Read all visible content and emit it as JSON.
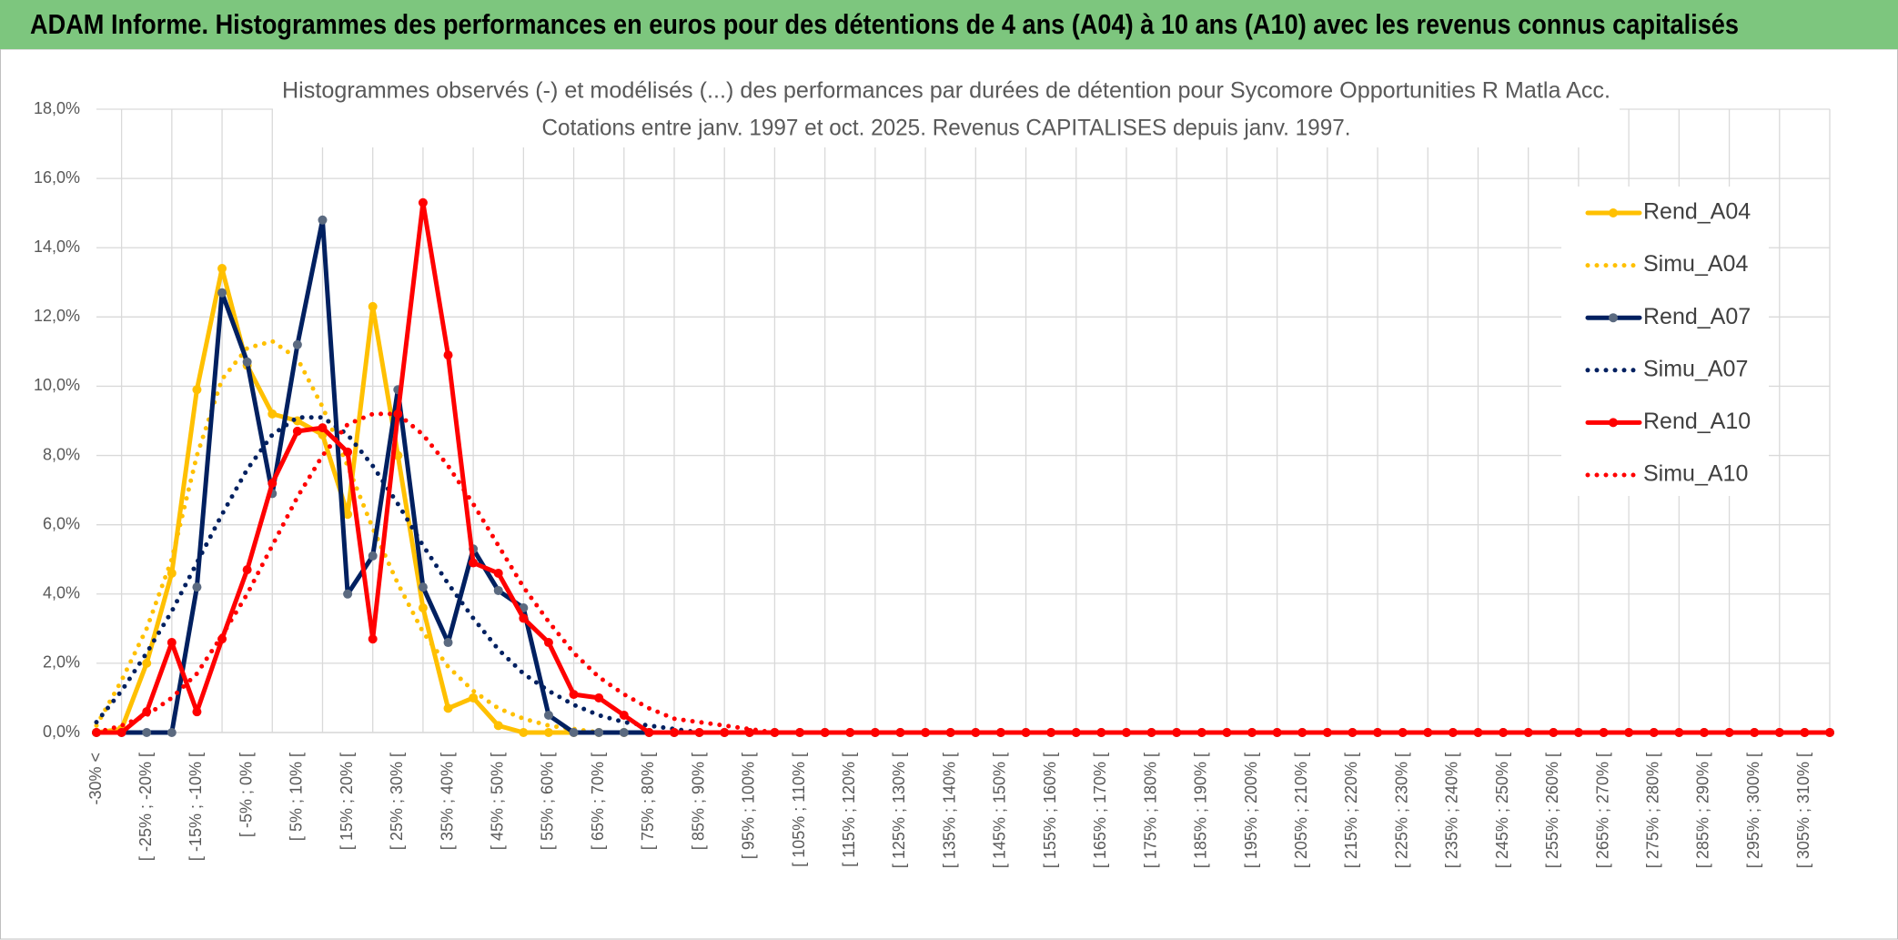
{
  "header": "ADAM Informe. Histogrammes des performances en euros pour des détentions de 4 ans (A04) à 10 ans (A10) avec les revenus connus capitalisés",
  "chart_data": {
    "type": "line",
    "title": "Histogrammes observés (-) et modélisés (...) des performances par durées de détention pour Sycomore Opportunities R Matla Acc.",
    "subtitle": "Cotations entre janv. 1997 et oct. 2025. Revenus CAPITALISES depuis janv. 1997.",
    "categories": [
      "-30% <",
      null,
      "[ -25% ; -20% [",
      null,
      "[ -15% ; -10% [",
      null,
      "[ -5% ; 0% [",
      null,
      "[ 5% ; 10% [",
      null,
      "[ 15% ; 20% [",
      null,
      "[ 25% ; 30% [",
      null,
      "[ 35% ; 40% [",
      null,
      "[ 45% ; 50% [",
      null,
      "[ 55% ; 60% [",
      null,
      "[ 65% ; 70% [",
      null,
      "[ 75% ; 80% [",
      null,
      "[ 85% ; 90% [",
      null,
      "[ 95% ; 100% [",
      null,
      "[ 105% ; 110% [",
      null,
      "[ 115% ; 120% [",
      null,
      "[ 125% ; 130% [",
      null,
      "[ 135% ; 140% [",
      null,
      "[ 145% ; 150% [",
      null,
      "[ 155% ; 160% [",
      null,
      "[ 165% ; 170% [",
      null,
      "[ 175% ; 180% [",
      null,
      "[ 185% ; 190% [",
      null,
      "[ 195% ; 200% [",
      null,
      "[ 205% ; 210% [",
      null,
      "[ 215% ; 220% [",
      null,
      "[ 225% ; 230% [",
      null,
      "[ 235% ; 240% [",
      null,
      "[ 245% ; 250% [",
      null,
      "[ 255% ; 260% [",
      null,
      "[ 265% ; 270% [",
      null,
      "[ 275% ; 280% [",
      null,
      "[ 285% ; 290% [",
      null,
      "[ 295% ; 300% [",
      null,
      "[ 305% ; 310% [",
      null
    ],
    "series": [
      {
        "name": "Rend_A04",
        "color": "#FFC000",
        "style": "solid",
        "markers": true,
        "values": [
          0,
          0.1,
          2.0,
          4.6,
          9.9,
          13.4,
          10.6,
          9.2,
          9.0,
          8.6,
          6.3,
          12.3,
          8.0,
          3.6,
          0.7,
          1.0,
          0.2,
          0,
          0,
          0,
          0,
          0,
          0,
          0,
          0,
          0,
          0,
          0,
          0,
          0,
          0,
          0,
          0,
          0,
          0,
          0,
          0,
          0,
          0,
          0,
          0,
          0,
          0,
          0,
          0,
          0,
          0,
          0,
          0,
          0,
          0,
          0,
          0,
          0,
          0,
          0,
          0,
          0,
          0,
          0,
          0,
          0,
          0,
          0,
          0,
          0,
          0,
          0,
          0,
          0
        ]
      },
      {
        "name": "Simu_A04",
        "color": "#FFC000",
        "style": "dotted",
        "markers": false,
        "values": [
          0.2,
          1.5,
          3.0,
          5.0,
          8.0,
          10.2,
          11.1,
          11.3,
          10.8,
          9.4,
          7.7,
          5.9,
          4.3,
          2.9,
          1.9,
          1.2,
          0.7,
          0.4,
          0.2,
          0.1,
          0,
          0,
          0,
          0,
          0,
          0,
          0,
          0,
          0,
          0,
          0,
          0,
          0,
          0,
          0,
          0,
          0,
          0,
          0,
          0,
          0,
          0,
          0,
          0,
          0,
          0,
          0,
          0,
          0,
          0,
          0,
          0,
          0,
          0,
          0,
          0,
          0,
          0,
          0,
          0,
          0,
          0,
          0,
          0,
          0,
          0,
          0,
          0,
          0,
          0
        ]
      },
      {
        "name": "Rend_A07",
        "color": "#002060",
        "marker_color": "#5B6A80",
        "style": "solid",
        "markers": true,
        "values": [
          0,
          0,
          0,
          0,
          4.2,
          12.7,
          10.7,
          6.9,
          11.2,
          14.8,
          4.0,
          5.1,
          9.9,
          4.2,
          2.6,
          5.3,
          4.1,
          3.6,
          0.5,
          0,
          0,
          0,
          0,
          0,
          0,
          0,
          0,
          0,
          0,
          0,
          0,
          0,
          0,
          0,
          0,
          0,
          0,
          0,
          0,
          0,
          0,
          0,
          0,
          0,
          0,
          0,
          0,
          0,
          0,
          0,
          0,
          0,
          0,
          0,
          0,
          0,
          0,
          0,
          0,
          0,
          0,
          0,
          0,
          0,
          0,
          0,
          0,
          0,
          0,
          0
        ]
      },
      {
        "name": "Simu_A07",
        "color": "#002060",
        "style": "dotted",
        "markers": false,
        "values": [
          0.3,
          1.2,
          2.3,
          3.5,
          4.9,
          6.3,
          7.6,
          8.6,
          9.1,
          9.1,
          8.6,
          7.7,
          6.6,
          5.4,
          4.3,
          3.3,
          2.4,
          1.7,
          1.2,
          0.8,
          0.5,
          0.3,
          0.2,
          0.1,
          0,
          0,
          0,
          0,
          0,
          0,
          0,
          0,
          0,
          0,
          0,
          0,
          0,
          0,
          0,
          0,
          0,
          0,
          0,
          0,
          0,
          0,
          0,
          0,
          0,
          0,
          0,
          0,
          0,
          0,
          0,
          0,
          0,
          0,
          0,
          0,
          0,
          0,
          0,
          0,
          0,
          0,
          0,
          0,
          0,
          0
        ]
      },
      {
        "name": "Rend_A10",
        "color": "#FF0000",
        "style": "solid",
        "markers": true,
        "values": [
          0,
          0,
          0.6,
          2.6,
          0.6,
          2.7,
          4.7,
          7.2,
          8.7,
          8.8,
          8.1,
          2.7,
          9.2,
          15.3,
          10.9,
          4.9,
          4.6,
          3.3,
          2.6,
          1.1,
          1.0,
          0.5,
          0,
          0,
          0,
          0,
          0,
          0,
          0,
          0,
          0,
          0,
          0,
          0,
          0,
          0,
          0,
          0,
          0,
          0,
          0,
          0,
          0,
          0,
          0,
          0,
          0,
          0,
          0,
          0,
          0,
          0,
          0,
          0,
          0,
          0,
          0,
          0,
          0,
          0,
          0,
          0,
          0,
          0,
          0,
          0,
          0,
          0,
          0,
          0
        ]
      },
      {
        "name": "Simu_A10",
        "color": "#FF0000",
        "style": "dotted",
        "markers": false,
        "values": [
          0,
          0.2,
          0.5,
          1.0,
          1.7,
          2.8,
          4.0,
          5.4,
          6.8,
          8.0,
          8.9,
          9.2,
          9.2,
          8.6,
          7.7,
          6.6,
          5.4,
          4.2,
          3.2,
          2.3,
          1.6,
          1.1,
          0.7,
          0.4,
          0.3,
          0.2,
          0.1,
          0,
          0,
          0,
          0,
          0,
          0,
          0,
          0,
          0,
          0,
          0,
          0,
          0,
          0,
          0,
          0,
          0,
          0,
          0,
          0,
          0,
          0,
          0,
          0,
          0,
          0,
          0,
          0,
          0,
          0,
          0,
          0,
          0,
          0,
          0,
          0,
          0,
          0,
          0,
          0,
          0,
          0,
          0
        ]
      }
    ],
    "ylim": [
      0,
      18
    ],
    "yticks": [
      {
        "value": 0,
        "label": "0,0%"
      },
      {
        "value": 2,
        "label": "2,0%"
      },
      {
        "value": 4,
        "label": "4,0%"
      },
      {
        "value": 6,
        "label": "6,0%"
      },
      {
        "value": 8,
        "label": "8,0%"
      },
      {
        "value": 10,
        "label": "10,0%"
      },
      {
        "value": 12,
        "label": "12,0%"
      },
      {
        "value": 14,
        "label": "14,0%"
      },
      {
        "value": 16,
        "label": "16,0%"
      },
      {
        "value": 18,
        "label": "18,0%"
      }
    ],
    "grid": true,
    "legend": "right"
  }
}
